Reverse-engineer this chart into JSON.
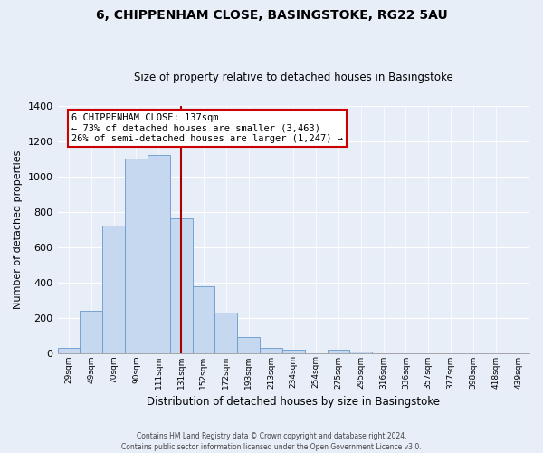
{
  "title": "6, CHIPPENHAM CLOSE, BASINGSTOKE, RG22 5AU",
  "subtitle": "Size of property relative to detached houses in Basingstoke",
  "xlabel": "Distribution of detached houses by size in Basingstoke",
  "ylabel": "Number of detached properties",
  "categories": [
    "29sqm",
    "49sqm",
    "70sqm",
    "90sqm",
    "111sqm",
    "131sqm",
    "152sqm",
    "172sqm",
    "193sqm",
    "213sqm",
    "234sqm",
    "254sqm",
    "275sqm",
    "295sqm",
    "316sqm",
    "336sqm",
    "357sqm",
    "377sqm",
    "398sqm",
    "418sqm",
    "439sqm"
  ],
  "values": [
    30,
    240,
    720,
    1100,
    1120,
    760,
    375,
    230,
    90,
    30,
    20,
    0,
    20,
    10,
    0,
    0,
    0,
    0,
    0,
    0,
    0
  ],
  "bar_color": "#c5d8ef",
  "bar_edge_color": "#6699cc",
  "vline_x_index": 5,
  "vline_color": "#aa0000",
  "annotation_title": "6 CHIPPENHAM CLOSE: 137sqm",
  "annotation_line1": "← 73% of detached houses are smaller (3,463)",
  "annotation_line2": "26% of semi-detached houses are larger (1,247) →",
  "annotation_box_color": "#ffffff",
  "annotation_box_edge": "#cc0000",
  "footer_line1": "Contains HM Land Registry data © Crown copyright and database right 2024.",
  "footer_line2": "Contains public sector information licensed under the Open Government Licence v3.0.",
  "ylim": [
    0,
    1400
  ],
  "yticks": [
    0,
    200,
    400,
    600,
    800,
    1000,
    1200,
    1400
  ],
  "background_color": "#e8eef8",
  "plot_background": "#e8eef8",
  "title_fontsize": 10,
  "subtitle_fontsize": 8.5
}
